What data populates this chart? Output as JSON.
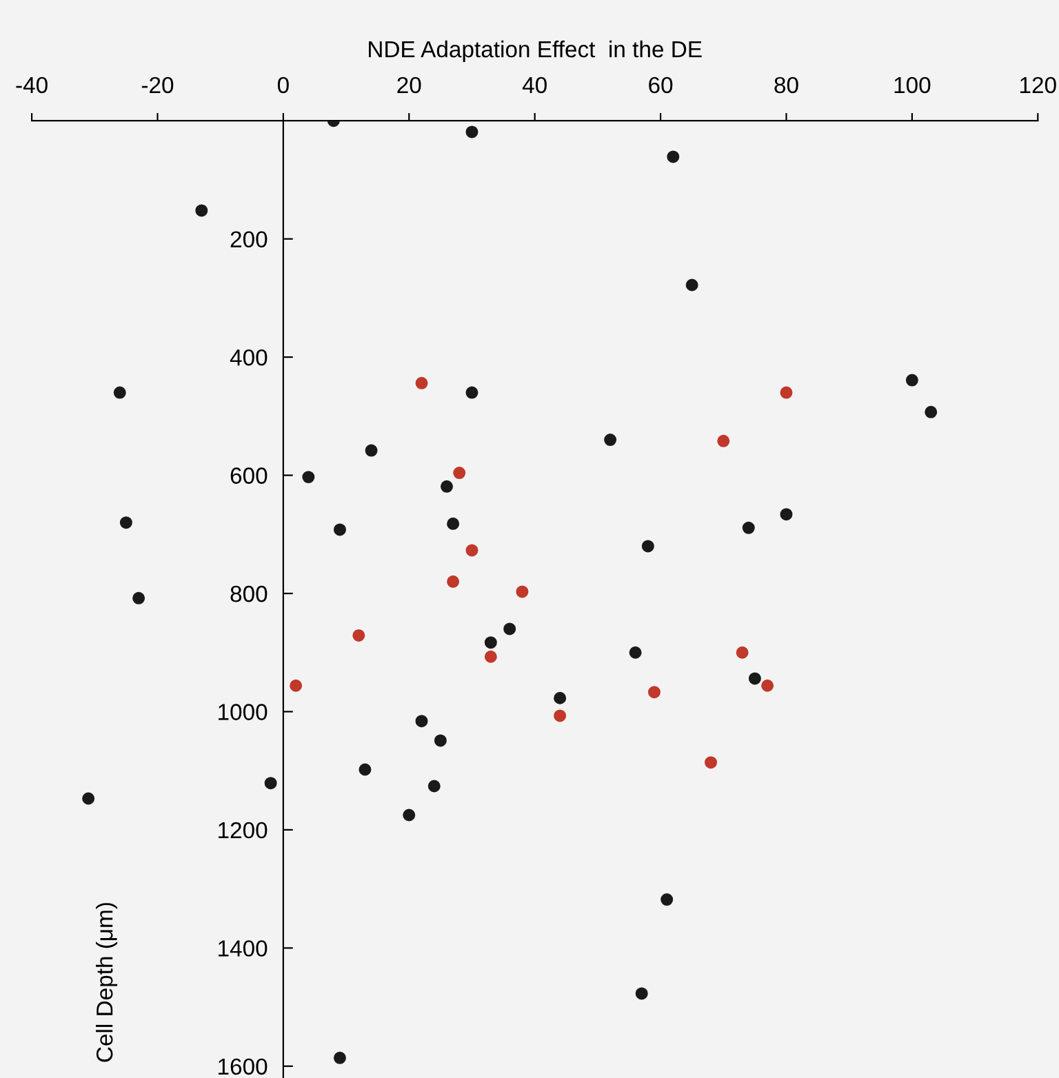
{
  "chart_data": {
    "type": "scatter",
    "xlabel": "NDE Adaptation Effect  in the DE",
    "ylabel": "Cell Depth (μm)",
    "xlim": [
      -40,
      120
    ],
    "xticks": [
      -40,
      -20,
      0,
      20,
      40,
      60,
      80,
      100,
      120
    ],
    "ylim": [
      1620,
      0
    ],
    "yticks": [
      200,
      400,
      600,
      800,
      1000,
      1200,
      1400,
      1600
    ],
    "grid": false,
    "marker": "circle",
    "series": [
      {
        "color": "#1a1a1a",
        "x": [
          8,
          30,
          62,
          -13,
          65,
          -26,
          30,
          100,
          103,
          52,
          14,
          4,
          26,
          9,
          27,
          -25,
          80,
          74,
          58,
          -23,
          36,
          33,
          56,
          44,
          75,
          22,
          25,
          13,
          -2,
          24,
          -31,
          20,
          61,
          57,
          9
        ],
        "values": [
          0,
          19,
          61,
          152,
          278,
          460,
          460,
          439,
          493,
          540,
          558,
          603,
          619,
          692,
          682,
          680,
          666,
          689,
          720,
          808,
          860,
          883,
          900,
          977,
          944,
          1016,
          1049,
          1098,
          1121,
          1126,
          1147,
          1175,
          1318,
          1477,
          1586
        ]
      },
      {
        "color": "#c0392b",
        "x": [
          22,
          28,
          80,
          70,
          30,
          27,
          38,
          12,
          33,
          2,
          44,
          59,
          77,
          73,
          68
        ],
        "values": [
          444,
          596,
          460,
          542,
          727,
          780,
          797,
          871,
          907,
          956,
          1007,
          967,
          956,
          900,
          1086
        ]
      }
    ]
  }
}
